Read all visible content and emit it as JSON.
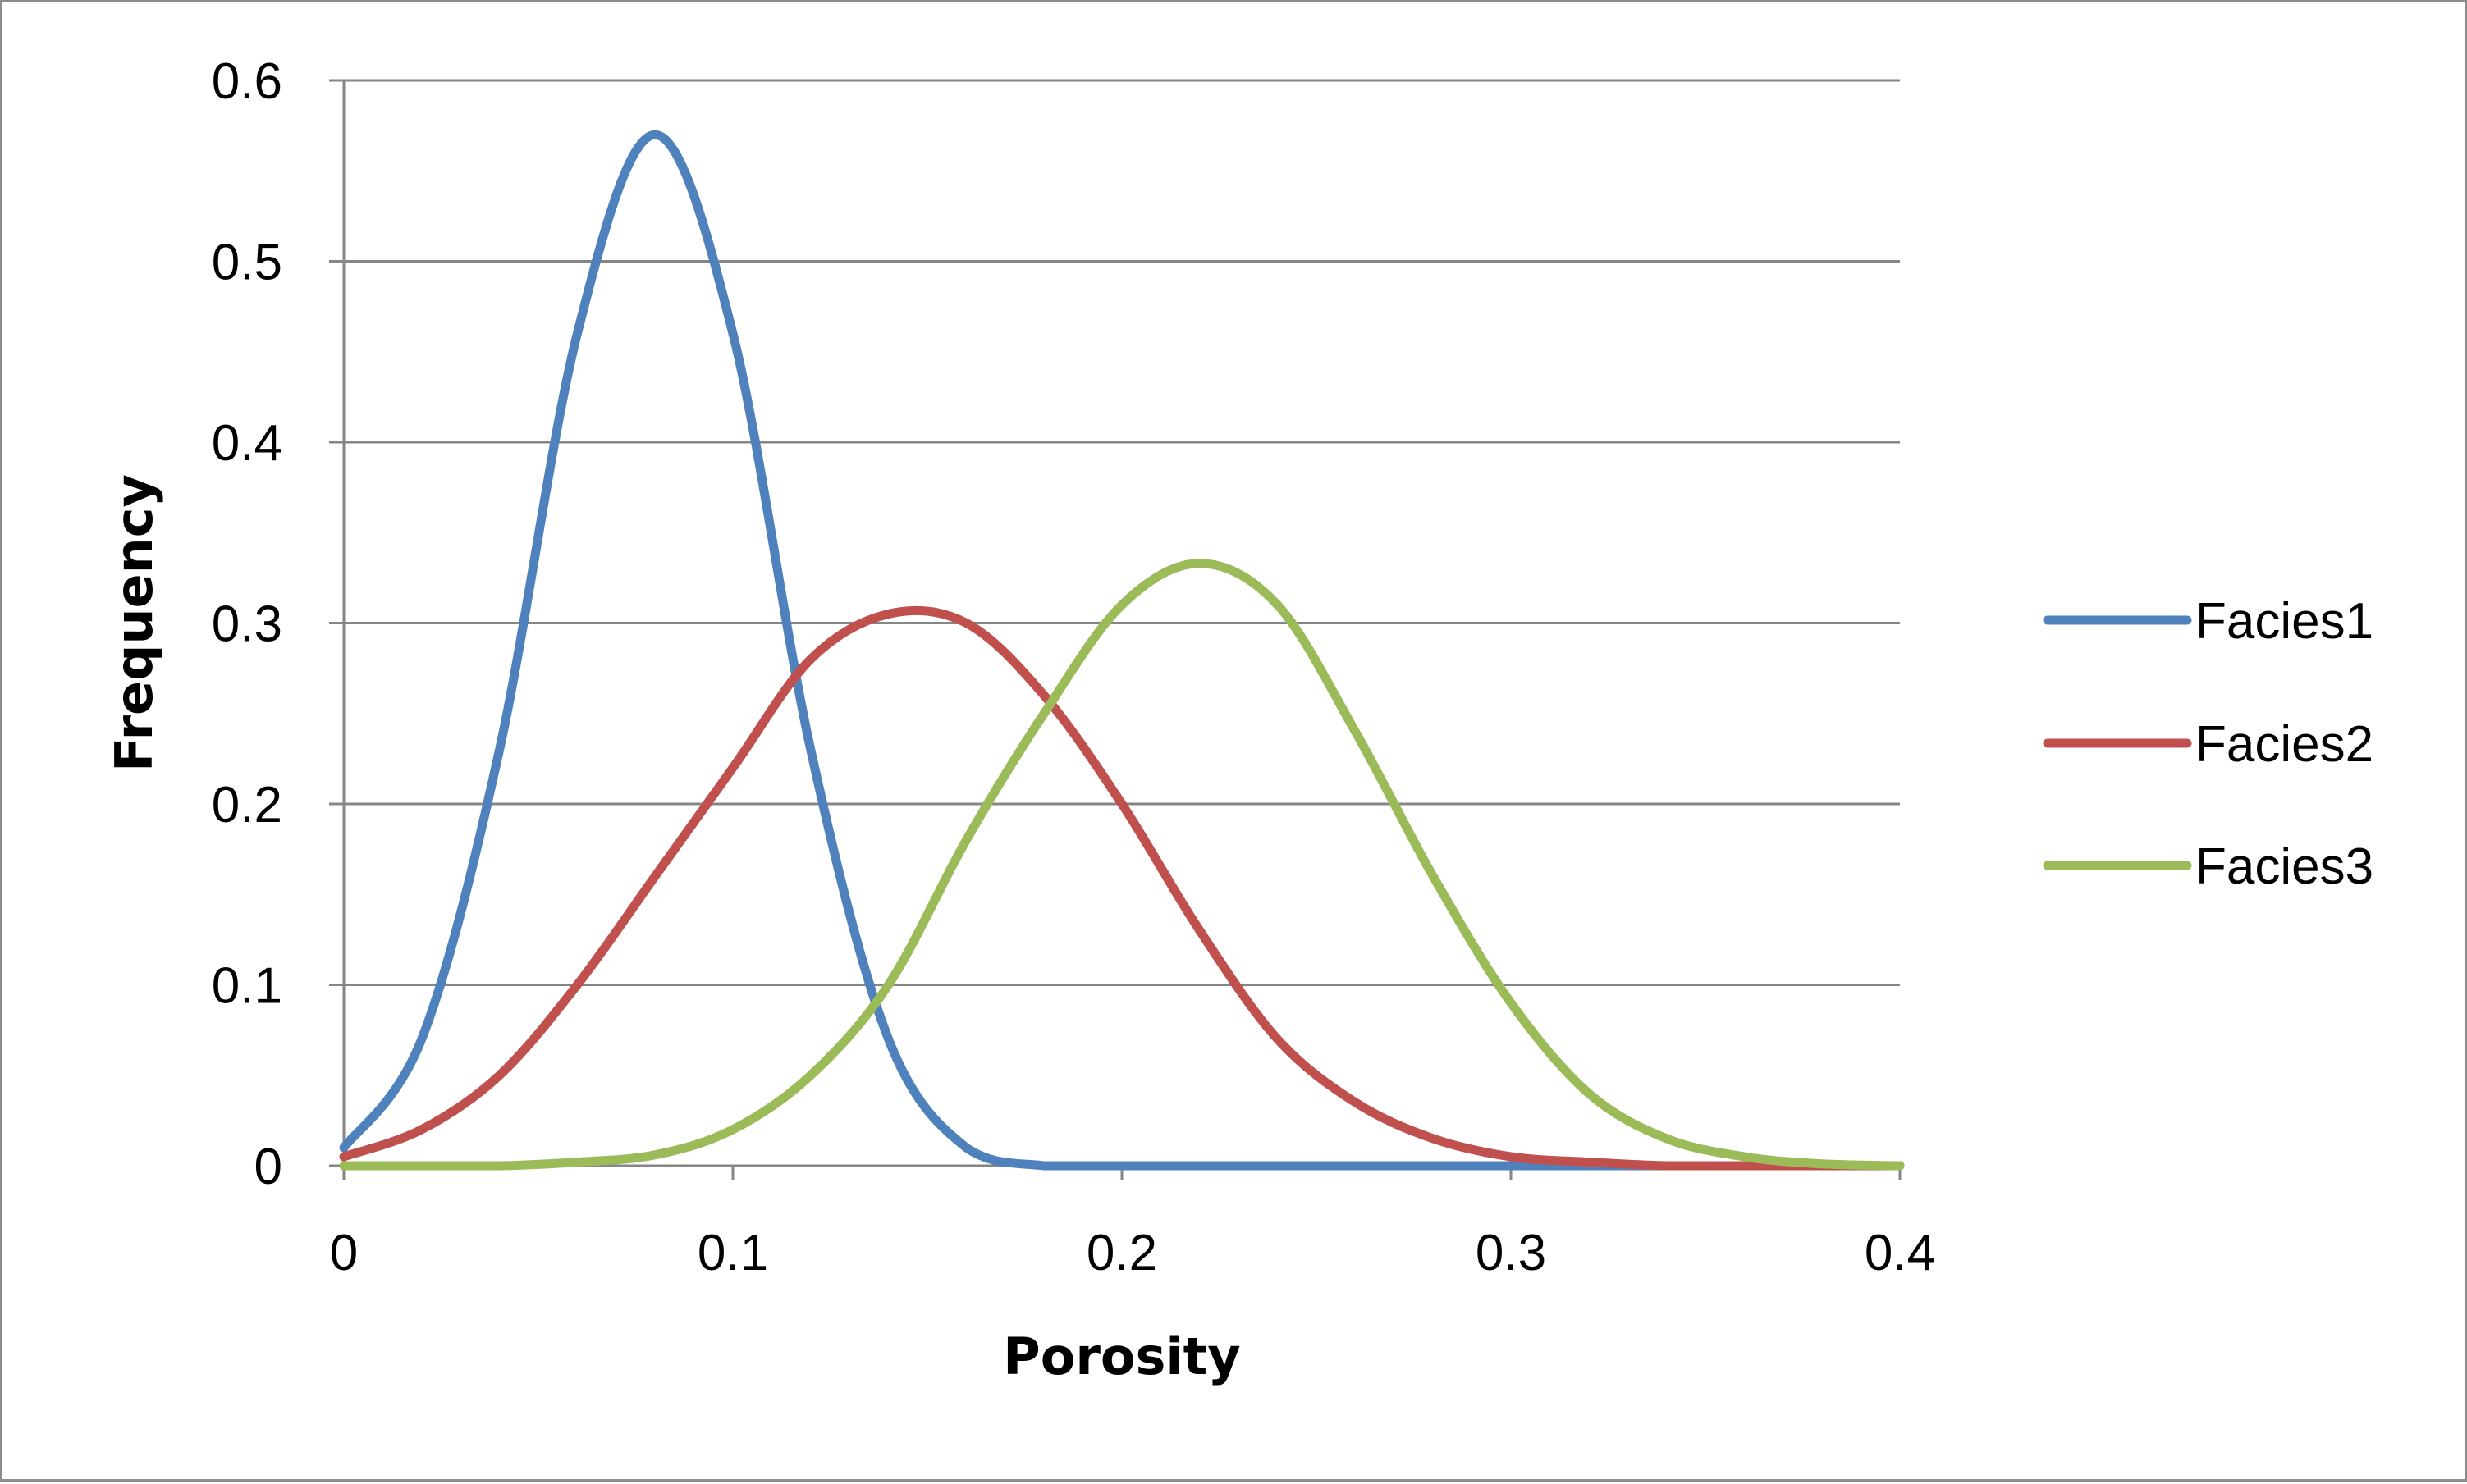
{
  "chart_data": {
    "type": "line",
    "title": "",
    "xlabel": "Porosity",
    "ylabel": "Frequency",
    "xlim": [
      0,
      0.4
    ],
    "ylim": [
      0,
      0.6
    ],
    "x_ticks": [
      "0",
      "0.1",
      "0.2",
      "0.3",
      "0.4"
    ],
    "y_ticks": [
      "0",
      "0.1",
      "0.2",
      "0.3",
      "0.4",
      "0.5",
      "0.6"
    ],
    "grid": "horizontal",
    "legend_position": "right",
    "x": [
      0.0,
      0.02,
      0.04,
      0.06,
      0.08,
      0.1,
      0.12,
      0.14,
      0.16,
      0.18,
      0.2,
      0.22,
      0.24,
      0.26,
      0.28,
      0.3,
      0.32,
      0.34,
      0.36,
      0.38,
      0.4
    ],
    "series": [
      {
        "name": "Facies1",
        "color": "#4f81bd",
        "values": [
          0.01,
          0.07,
          0.23,
          0.46,
          0.57,
          0.46,
          0.23,
          0.07,
          0.01,
          0.0,
          0.0,
          0.0,
          0.0,
          0.0,
          0.0,
          0.0,
          0.0,
          0.0,
          0.0,
          0.0,
          0.0
        ]
      },
      {
        "name": "Facies2",
        "color": "#c0504d",
        "values": [
          0.005,
          0.02,
          0.05,
          0.1,
          0.16,
          0.22,
          0.28,
          0.305,
          0.3,
          0.26,
          0.2,
          0.13,
          0.07,
          0.035,
          0.015,
          0.005,
          0.002,
          0.0,
          0.0,
          0.0,
          0.0
        ]
      },
      {
        "name": "Facies3",
        "color": "#9bbb59",
        "values": [
          0.0,
          0.0,
          0.0,
          0.002,
          0.006,
          0.02,
          0.05,
          0.1,
          0.18,
          0.25,
          0.31,
          0.333,
          0.31,
          0.24,
          0.16,
          0.09,
          0.04,
          0.015,
          0.005,
          0.001,
          0.0
        ]
      }
    ]
  }
}
